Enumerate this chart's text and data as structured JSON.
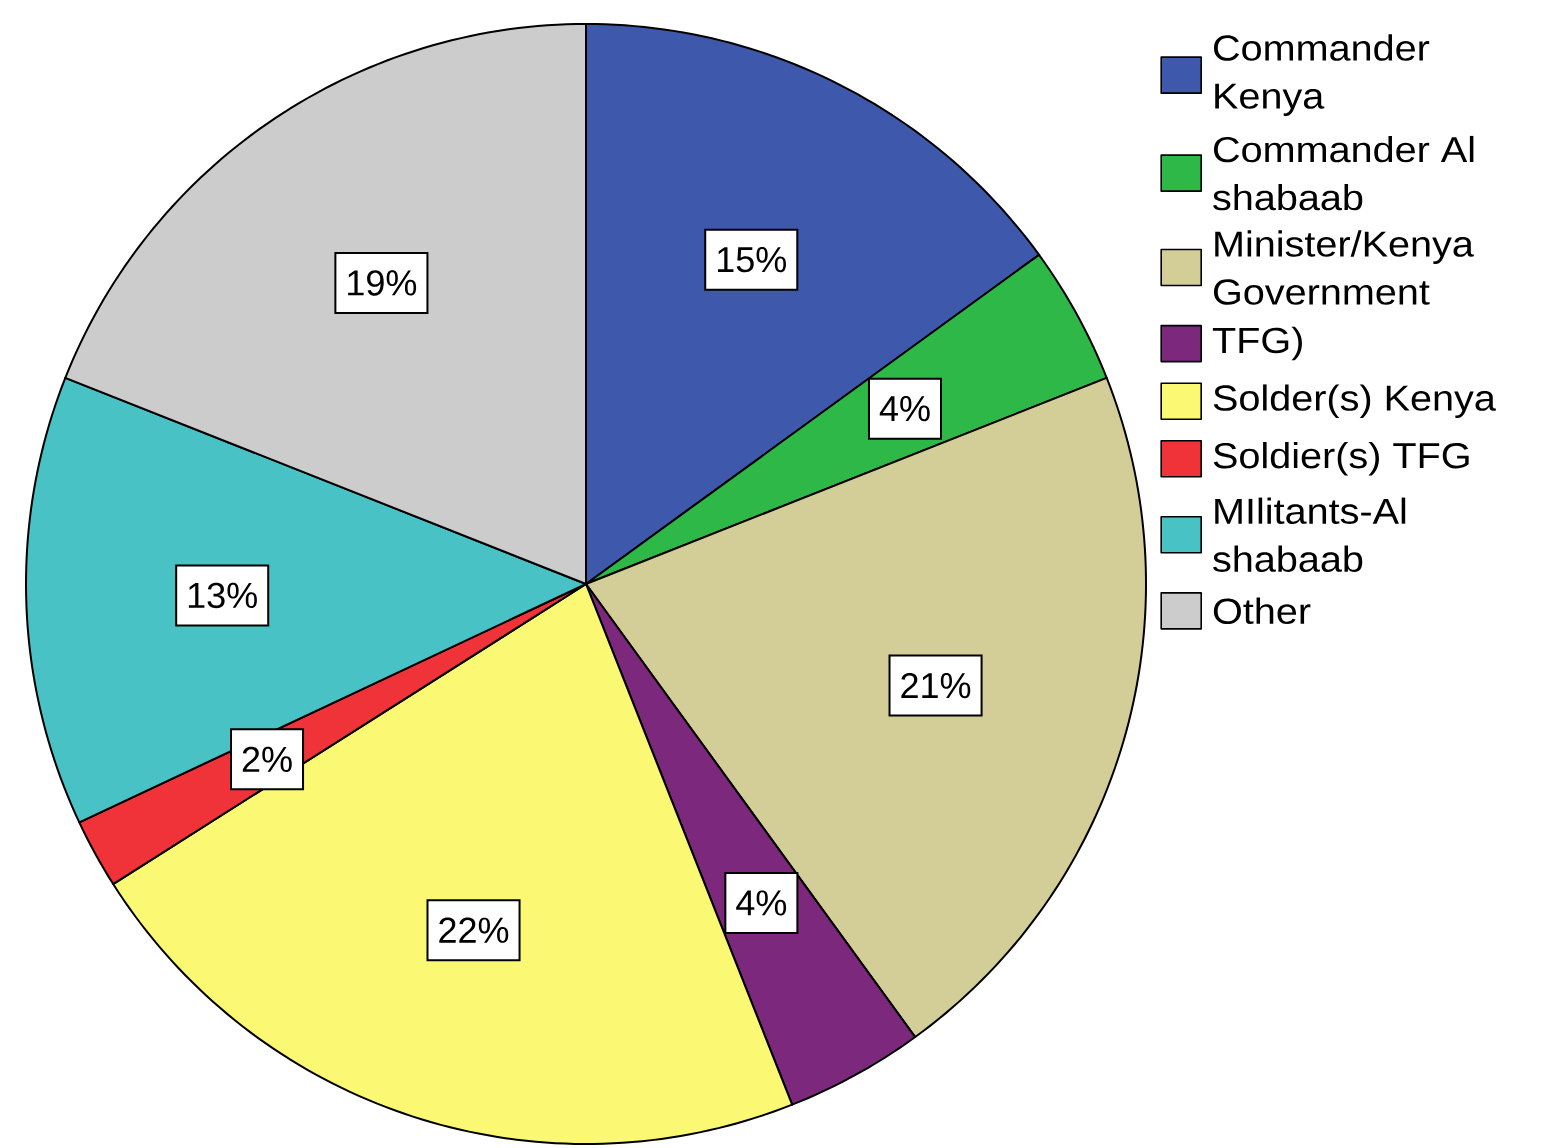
{
  "chart_data": {
    "type": "pie",
    "categories": [
      "Commander Kenya",
      "Commander Al shabaab",
      "Minister/Kenya Government",
      "TFG)",
      "Solder(s) Kenya",
      "Soldier(s) TFG",
      "MIlitants-Al shabaab",
      "Other"
    ],
    "values": [
      15,
      4,
      21,
      4,
      22,
      2,
      13,
      19
    ],
    "colors": [
      "#3e58ac",
      "#2eb848",
      "#d3ce97",
      "#7c287d",
      "#fbf873",
      "#ef3338",
      "#48c2c5",
      "#cccccc"
    ],
    "value_labels": [
      "15%",
      "4%",
      "21%",
      "4%",
      "22%",
      "2%",
      "13%",
      "19%"
    ],
    "legend": "top right"
  }
}
